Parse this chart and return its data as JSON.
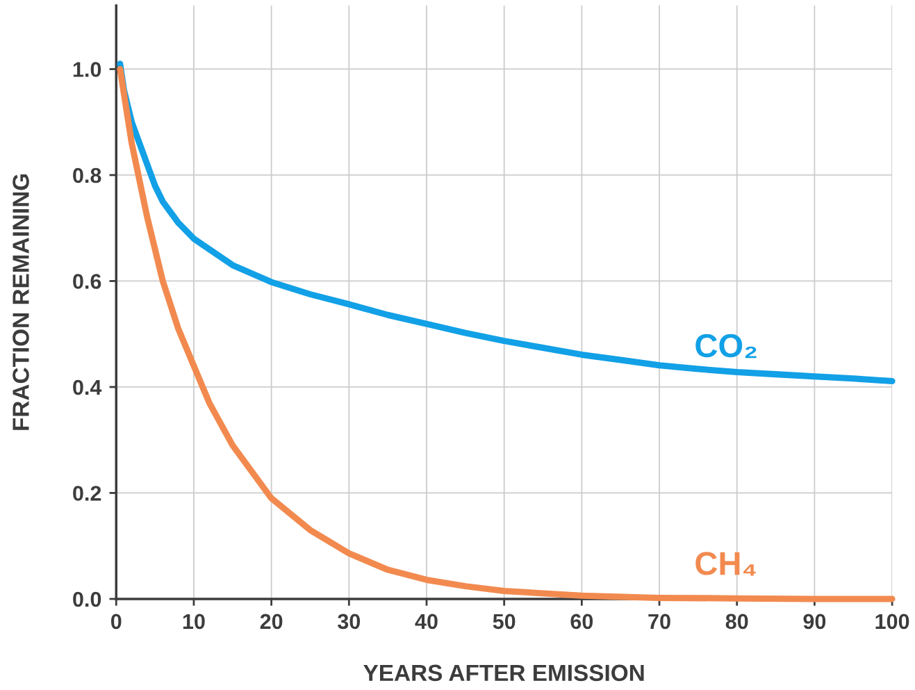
{
  "chart_data": {
    "type": "line",
    "xlabel": "YEARS AFTER EMISSION",
    "ylabel": "FRACTION REMAINING",
    "xlim": [
      0,
      100
    ],
    "ylim": [
      0,
      1.12
    ],
    "xticks": [
      0,
      10,
      20,
      30,
      40,
      50,
      60,
      70,
      80,
      90,
      100
    ],
    "yticks": [
      {
        "value": 0,
        "label": "0.0"
      },
      {
        "value": 0.2,
        "label": "0.2"
      },
      {
        "value": 0.4,
        "label": "0.4"
      },
      {
        "value": 0.6,
        "label": "0.6"
      },
      {
        "value": 0.8,
        "label": "0.8"
      },
      {
        "value": 1.0,
        "label": "1.0"
      }
    ],
    "grid": true,
    "legend": false,
    "marker": "none",
    "line_style": "solid",
    "series": [
      {
        "name": "CO₂",
        "color": "#12a0e6",
        "x": [
          0.5,
          1,
          2,
          3,
          4,
          5,
          6,
          8,
          10,
          12,
          15,
          20,
          25,
          30,
          35,
          40,
          45,
          50,
          55,
          60,
          65,
          70,
          75,
          80,
          85,
          90,
          95,
          100
        ],
        "values": [
          1.01,
          0.96,
          0.9,
          0.86,
          0.82,
          0.78,
          0.75,
          0.71,
          0.68,
          0.66,
          0.63,
          0.598,
          0.575,
          0.556,
          0.536,
          0.519,
          0.502,
          0.487,
          0.474,
          0.461,
          0.451,
          0.441,
          0.434,
          0.428,
          0.424,
          0.42,
          0.416,
          0.411
        ]
      },
      {
        "name": "CH₄",
        "color": "#f28a4f",
        "x": [
          0.5,
          2,
          4,
          6,
          8,
          10,
          12,
          15,
          20,
          25,
          30,
          35,
          40,
          45,
          50,
          60,
          70,
          80,
          90,
          100
        ],
        "values": [
          1.0,
          0.86,
          0.72,
          0.6,
          0.51,
          0.44,
          0.37,
          0.29,
          0.19,
          0.13,
          0.086,
          0.055,
          0.036,
          0.024,
          0.015,
          0.006,
          0.002,
          0.001,
          0.0,
          0.0
        ]
      }
    ]
  }
}
